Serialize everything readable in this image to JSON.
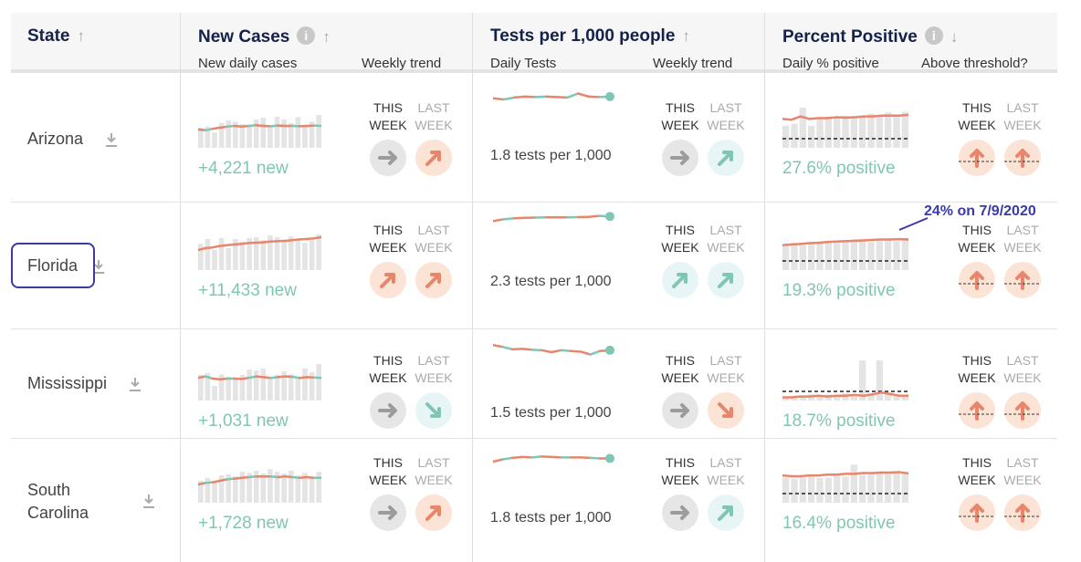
{
  "colors": {
    "orange": "#e8866c",
    "teal": "#7fc6b4",
    "bar": "#e4e4e4",
    "navy": "#14224a",
    "annot": "#3a3aaa"
  },
  "header": {
    "state": "State",
    "new_cases": {
      "title": "New Cases",
      "sub1": "New daily cases",
      "sub2": "Weekly trend"
    },
    "tests": {
      "title": "Tests per 1,000 people",
      "sub1": "Daily Tests",
      "sub2": "Weekly trend"
    },
    "positive": {
      "title": "Percent Positive",
      "sub1": "Daily % positive",
      "sub2": "Above threshold?"
    },
    "info_glyph": "i",
    "sort_up": "↑",
    "sort_down": "↓"
  },
  "labels": {
    "this_week": "THIS\nWEEK",
    "last_week": "LAST\nWEEK"
  },
  "annotation": "24% on 7/9/2020",
  "chart_data": {
    "type": "table",
    "rows": [
      {
        "state": "Arizona",
        "new_cases_text": "+4,221 new",
        "case_bars": [
          0.55,
          0.58,
          0.42,
          0.68,
          0.75,
          0.72,
          0.65,
          0.63,
          0.78,
          0.82,
          0.6,
          0.85,
          0.78,
          0.68,
          0.84,
          0.6,
          0.72,
          0.9
        ],
        "case_line": [
          0.5,
          0.48,
          0.52,
          0.55,
          0.58,
          0.6,
          0.58,
          0.6,
          0.62,
          0.6,
          0.59,
          0.61,
          0.6,
          0.6,
          0.59,
          0.6,
          0.61,
          0.6
        ],
        "case_trend": {
          "this": "flat",
          "last": "up"
        },
        "tests_line": [
          0.55,
          0.5,
          0.58,
          0.62,
          0.6,
          0.62,
          0.6,
          0.58,
          0.75,
          0.62,
          0.6,
          0.62
        ],
        "tests_text": "1.8 tests per 1,000",
        "tests_trend": {
          "this": "flat",
          "last": "up"
        },
        "pos_bars": [
          0.55,
          0.6,
          1.0,
          0.55,
          0.75,
          0.78,
          0.75,
          0.8,
          0.78,
          0.8,
          0.85,
          0.82,
          0.88,
          0.8,
          0.9
        ],
        "pos_line": [
          0.72,
          0.7,
          0.78,
          0.72,
          0.74,
          0.74,
          0.76,
          0.75,
          0.76,
          0.78,
          0.78,
          0.8,
          0.8,
          0.8,
          0.82
        ],
        "pos_text": "27.6% positive",
        "pos_trend": {
          "this": "up",
          "last": "up"
        }
      },
      {
        "state": "Florida",
        "new_cases_text": "+11,433 new",
        "case_bars": [
          0.72,
          0.85,
          0.55,
          0.88,
          0.6,
          0.85,
          0.78,
          0.88,
          0.9,
          0.82,
          0.95,
          0.9,
          0.78,
          0.92,
          0.85,
          0.75,
          0.82,
          0.98
        ],
        "case_line": [
          0.55,
          0.6,
          0.62,
          0.66,
          0.68,
          0.7,
          0.72,
          0.74,
          0.75,
          0.76,
          0.78,
          0.79,
          0.8,
          0.82,
          0.84,
          0.85,
          0.87,
          0.9
        ],
        "case_trend": {
          "this": "up",
          "last": "up"
        },
        "tests_line": [
          0.6,
          0.68,
          0.72,
          0.74,
          0.75,
          0.76,
          0.76,
          0.76,
          0.77,
          0.78,
          0.82,
          0.8
        ],
        "tests_text": "2.3 tests per 1,000",
        "tests_trend": {
          "this": "up",
          "last": "up"
        },
        "pos_bars": [
          0.62,
          0.65,
          0.62,
          0.68,
          0.7,
          0.72,
          0.68,
          0.72,
          0.7,
          0.75,
          0.7,
          0.72,
          0.75,
          0.72,
          0.8
        ],
        "pos_line": [
          0.62,
          0.64,
          0.65,
          0.67,
          0.68,
          0.7,
          0.71,
          0.72,
          0.73,
          0.74,
          0.75,
          0.76,
          0.76,
          0.77,
          0.76
        ],
        "pos_text": "19.3% positive",
        "pos_trend": {
          "this": "up",
          "last": "up"
        }
      },
      {
        "state": "Mississippi",
        "new_cases_text": "+1,031 new",
        "case_bars": [
          0.7,
          0.75,
          0.4,
          0.72,
          0.65,
          0.62,
          0.7,
          0.85,
          0.82,
          0.88,
          0.65,
          0.7,
          0.8,
          0.72,
          0.6,
          0.88,
          0.78,
          1.0
        ],
        "case_line": [
          0.62,
          0.66,
          0.6,
          0.58,
          0.6,
          0.6,
          0.59,
          0.62,
          0.66,
          0.64,
          0.62,
          0.64,
          0.66,
          0.65,
          0.62,
          0.64,
          0.63,
          0.62
        ],
        "case_trend": {
          "this": "flat",
          "last": "down"
        },
        "tests_line": [
          0.8,
          0.72,
          0.62,
          0.64,
          0.6,
          0.58,
          0.5,
          0.58,
          0.55,
          0.52,
          0.4,
          0.55,
          0.58
        ],
        "tests_text": "1.5 tests per 1,000",
        "tests_trend": {
          "this": "flat",
          "last": "down"
        },
        "pos_bars": [
          0.1,
          0.12,
          0.12,
          0.15,
          0.12,
          0.15,
          0.12,
          0.18,
          0.15,
          1.0,
          0.18,
          1.0,
          0.2,
          0.15,
          0.15
        ],
        "pos_line": [
          0.08,
          0.08,
          0.1,
          0.1,
          0.12,
          0.1,
          0.12,
          0.12,
          0.14,
          0.12,
          0.15,
          0.2,
          0.16,
          0.12,
          0.12
        ],
        "pos_text": "18.7% positive",
        "pos_trend": {
          "this": "up",
          "last": "up"
        }
      },
      {
        "state": "South\nCarolina",
        "new_cases_text": "+1,728 new",
        "case_bars": [
          0.6,
          0.68,
          0.55,
          0.75,
          0.78,
          0.72,
          0.85,
          0.82,
          0.88,
          0.8,
          0.92,
          0.85,
          0.8,
          0.88,
          0.75,
          0.82,
          0.7,
          0.85
        ],
        "case_line": [
          0.5,
          0.54,
          0.56,
          0.6,
          0.64,
          0.66,
          0.68,
          0.7,
          0.72,
          0.72,
          0.72,
          0.7,
          0.72,
          0.7,
          0.68,
          0.7,
          0.68,
          0.68
        ],
        "case_trend": {
          "this": "flat",
          "last": "up"
        },
        "tests_line": [
          0.42,
          0.52,
          0.58,
          0.62,
          0.6,
          0.64,
          0.62,
          0.6,
          0.6,
          0.6,
          0.58,
          0.56,
          0.56
        ],
        "tests_text": "1.8 tests per 1,000",
        "tests_trend": {
          "this": "flat",
          "last": "up"
        },
        "pos_bars": [
          0.62,
          0.6,
          0.62,
          0.65,
          0.62,
          0.62,
          0.7,
          0.65,
          0.95,
          0.7,
          0.72,
          0.78,
          0.72,
          0.78,
          0.72
        ],
        "pos_line": [
          0.68,
          0.66,
          0.66,
          0.68,
          0.68,
          0.7,
          0.7,
          0.72,
          0.72,
          0.74,
          0.74,
          0.75,
          0.75,
          0.76,
          0.73
        ],
        "pos_text": "16.4% positive",
        "pos_trend": {
          "this": "up",
          "last": "up"
        }
      }
    ]
  }
}
